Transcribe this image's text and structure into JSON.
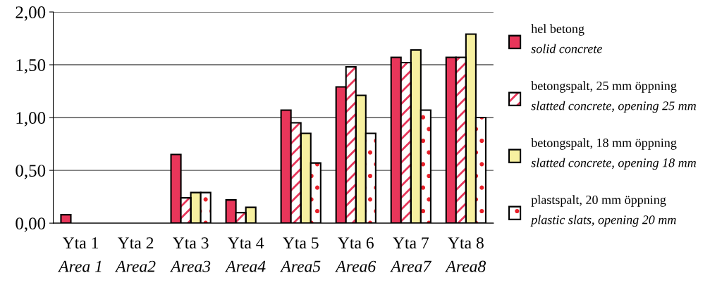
{
  "chart_data": {
    "type": "bar",
    "categories": [
      "Yta 1\nArea 1",
      "Yta 2\nArea2",
      "Yta 3\nArea3",
      "Yta 4\nArea4",
      "Yta 5\nArea5",
      "Yta 6\nArea6",
      "Yta 7\nArea7",
      "Yta 8\nArea8"
    ],
    "series": [
      {
        "name": "hel betong\nsolid concrete",
        "color": "#e8365a",
        "values": [
          0.08,
          null,
          0.65,
          0.22,
          1.07,
          1.29,
          1.57,
          1.57
        ]
      },
      {
        "name": "betongspalt, 25 mm öppning\nslatted concrete, opening 25 mm",
        "color": "#e8365a",
        "values": [
          null,
          null,
          0.24,
          0.1,
          0.95,
          1.48,
          1.52,
          1.57
        ]
      },
      {
        "name": "betongspalt, 18 mm öppning\nslatted concrete, opening 18 mm",
        "color": "#f7f0a0",
        "values": [
          null,
          null,
          0.29,
          0.15,
          0.85,
          1.21,
          1.64,
          1.79
        ]
      },
      {
        "name": "plastspalt, 20 mm öppning\nplastic slats, opening 20 mm",
        "color": "#e8202a",
        "values": [
          null,
          null,
          0.29,
          null,
          0.57,
          0.85,
          1.07,
          1.0
        ]
      }
    ],
    "ylim": [
      0,
      2
    ],
    "yticks": [
      {
        "value": 0,
        "label": "0,00"
      },
      {
        "value": 0.5,
        "label": "0,50"
      },
      {
        "value": 1,
        "label": "1,00"
      },
      {
        "value": 1.5,
        "label": "1,50"
      },
      {
        "value": 2,
        "label": "2,00"
      }
    ],
    "grid": "y",
    "legend": "right"
  }
}
